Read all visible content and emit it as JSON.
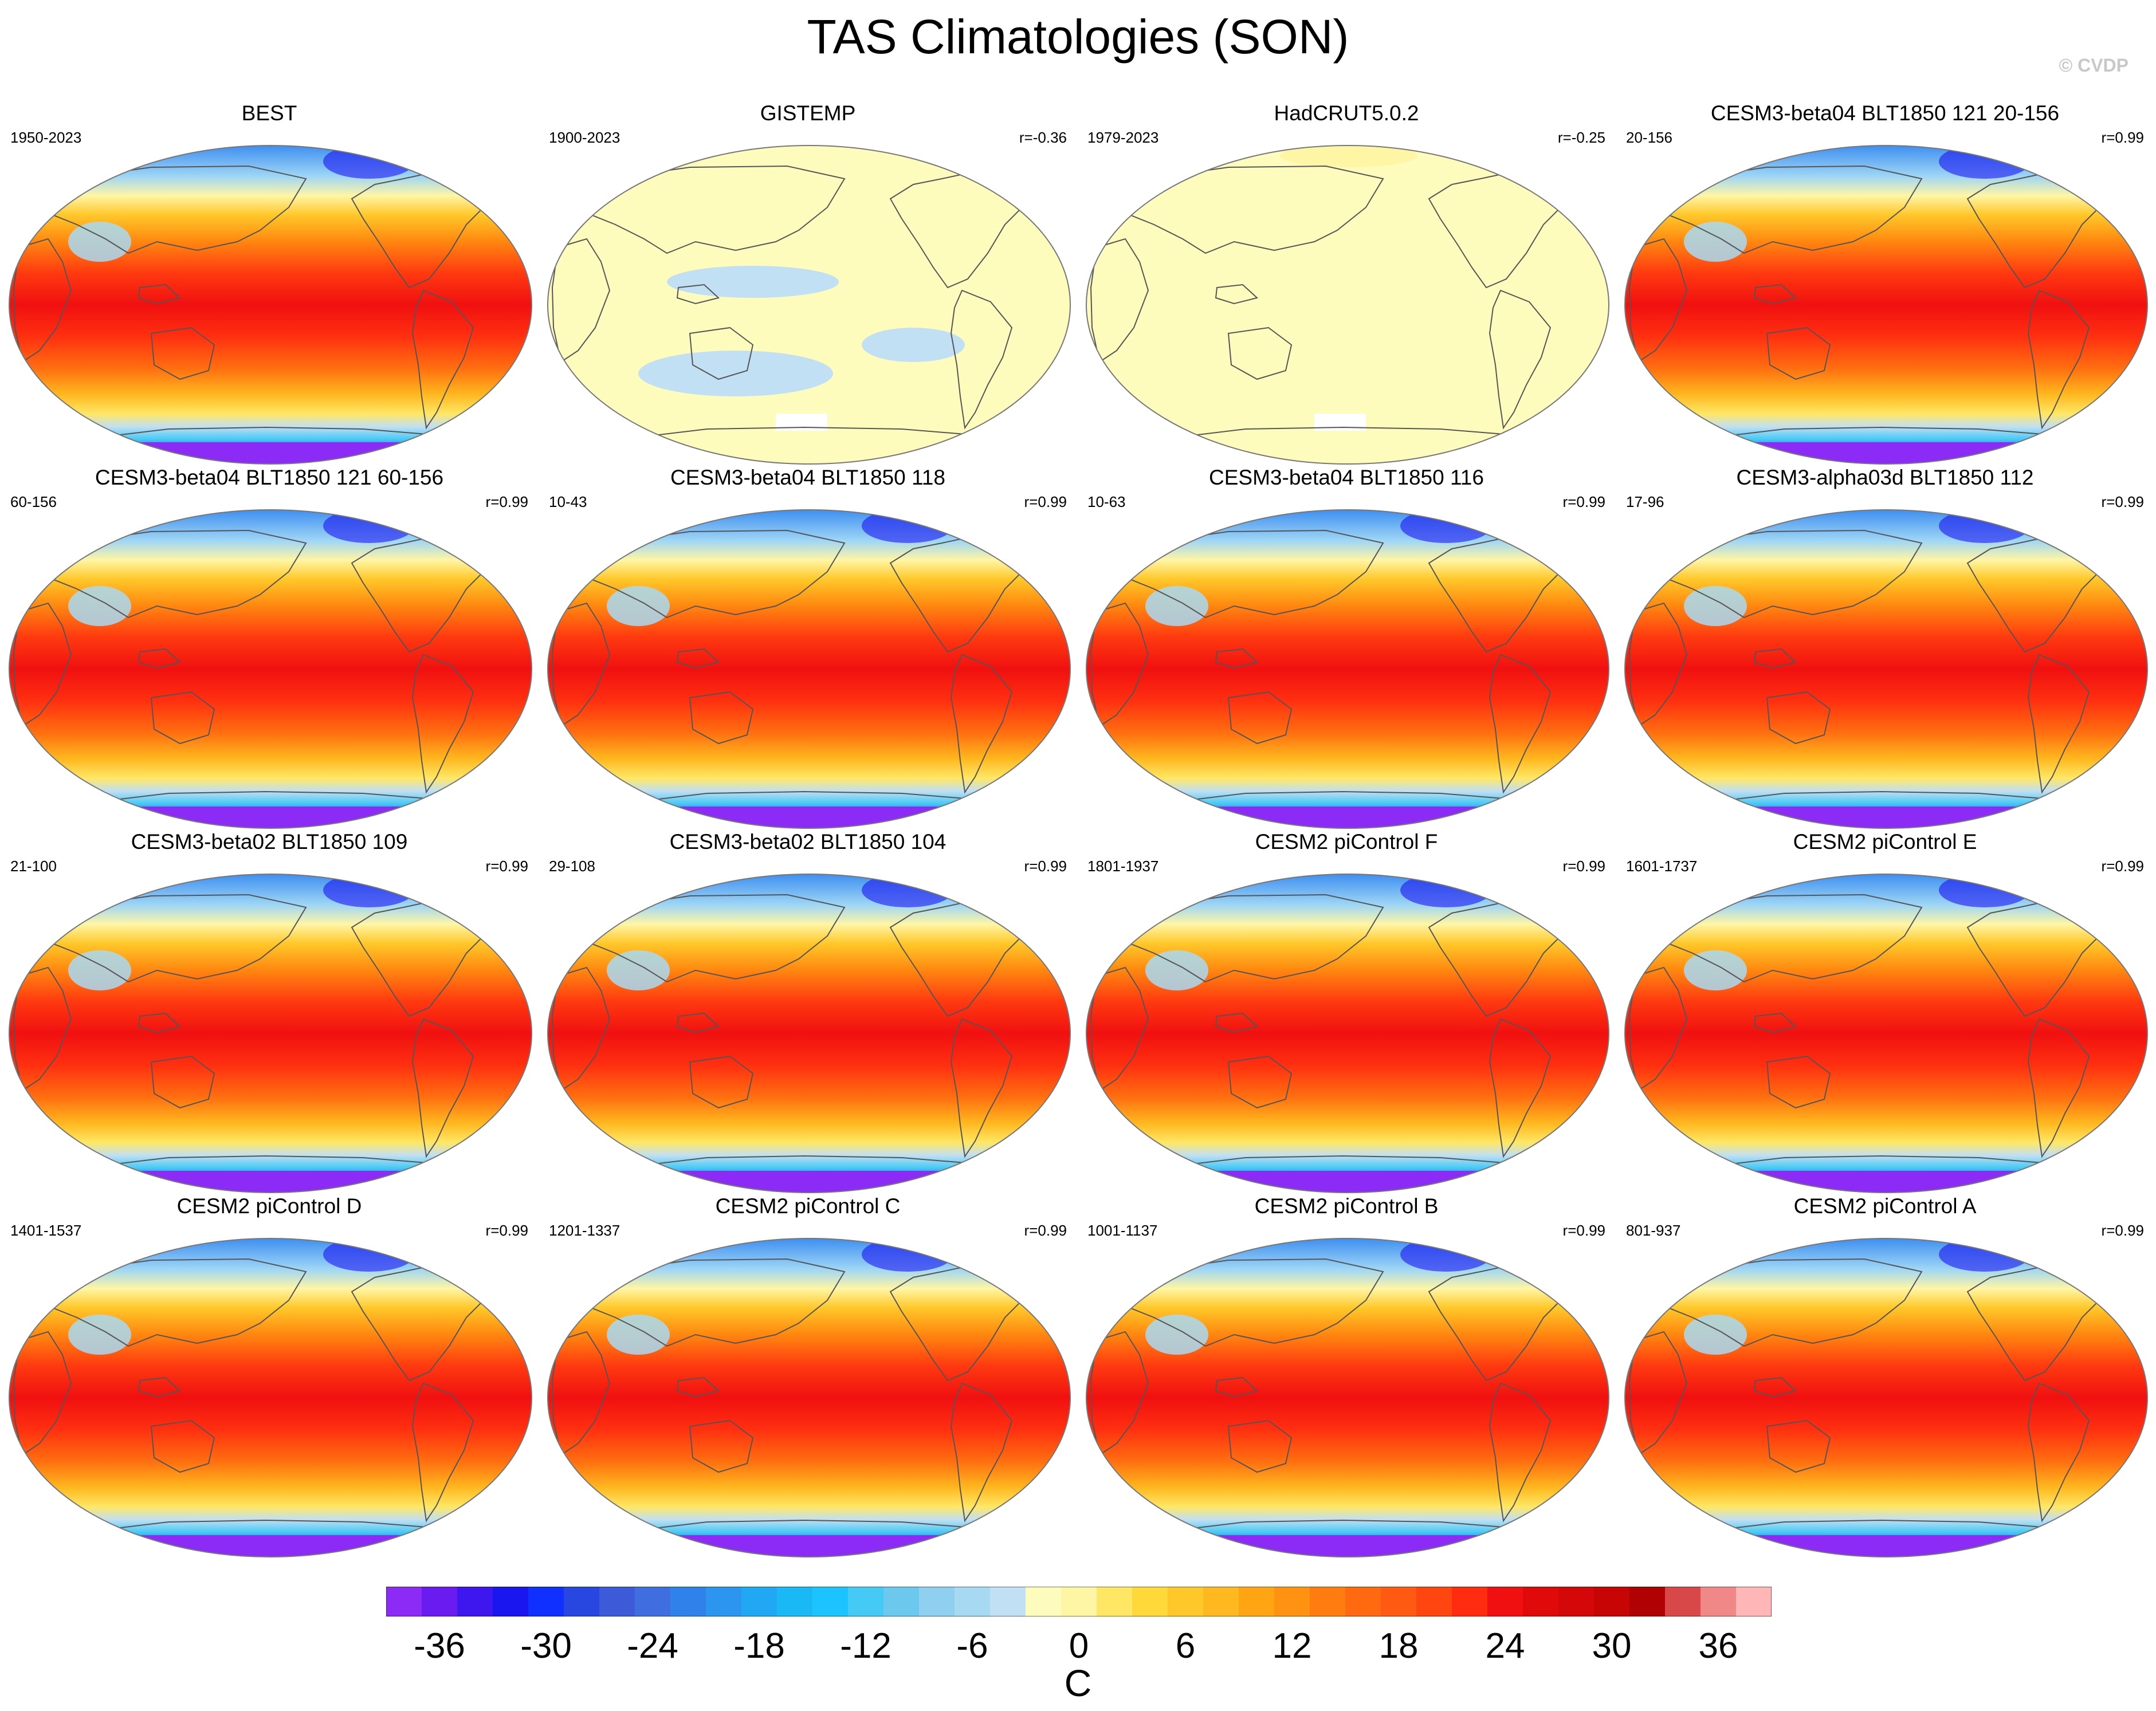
{
  "figure": {
    "title": "TAS Climatologies (SON)",
    "copyright": "© CVDP"
  },
  "colors": {
    "land_outline": "#555555",
    "map_border": "#777777",
    "colorbar_levels": [
      "#8c2bf5",
      "#6a1cf0",
      "#3d17ee",
      "#1a16f0",
      "#1030ff",
      "#2846e0",
      "#3d5ad8",
      "#3e6ee0",
      "#2f82ea",
      "#2c95f0",
      "#21a8f5",
      "#1ab8f5",
      "#1bc4ff",
      "#45c9f5",
      "#6dc8ee",
      "#8fd0f0",
      "#a8d9f3",
      "#c2e0f3",
      "#fefcbc",
      "#fff6a5",
      "#ffe765",
      "#ffd839",
      "#ffc82a",
      "#ffb81f",
      "#ffa514",
      "#ff9211",
      "#ff7d10",
      "#ff6a10",
      "#ff5a12",
      "#ff4510",
      "#ff2c10",
      "#f01010",
      "#e00a0a",
      "#d40808",
      "#c80505",
      "#b00202",
      "#d84848",
      "#f08888",
      "#ffb6b6"
    ]
  },
  "panels": [
    {
      "title": "BEST",
      "years": "1950-2023",
      "r": "",
      "kind": "full"
    },
    {
      "title": "GISTEMP",
      "years": "1900-2023",
      "r": "r=-0.36",
      "kind": "anom1"
    },
    {
      "title": "HadCRUT5.0.2",
      "years": "1979-2023",
      "r": "r=-0.25",
      "kind": "anom2"
    },
    {
      "title": "CESM3-beta04 BLT1850 121 20-156",
      "years": "20-156",
      "r": "r=0.99",
      "kind": "full"
    },
    {
      "title": "CESM3-beta04 BLT1850 121 60-156",
      "years": "60-156",
      "r": "r=0.99",
      "kind": "full"
    },
    {
      "title": "CESM3-beta04 BLT1850 118",
      "years": "10-43",
      "r": "r=0.99",
      "kind": "full"
    },
    {
      "title": "CESM3-beta04 BLT1850 116",
      "years": "10-63",
      "r": "r=0.99",
      "kind": "full"
    },
    {
      "title": "CESM3-alpha03d BLT1850 112",
      "years": "17-96",
      "r": "r=0.99",
      "kind": "full"
    },
    {
      "title": "CESM3-beta02 BLT1850 109",
      "years": "21-100",
      "r": "r=0.99",
      "kind": "full"
    },
    {
      "title": "CESM3-beta02 BLT1850 104",
      "years": "29-108",
      "r": "r=0.99",
      "kind": "full"
    },
    {
      "title": "CESM2 piControl F",
      "years": "1801-1937",
      "r": "r=0.99",
      "kind": "full"
    },
    {
      "title": "CESM2 piControl E",
      "years": "1601-1737",
      "r": "r=0.99",
      "kind": "full"
    },
    {
      "title": "CESM2 piControl D",
      "years": "1401-1537",
      "r": "r=0.99",
      "kind": "full"
    },
    {
      "title": "CESM2 piControl C",
      "years": "1201-1337",
      "r": "r=0.99",
      "kind": "full"
    },
    {
      "title": "CESM2 piControl B",
      "years": "1001-1137",
      "r": "r=0.99",
      "kind": "full"
    },
    {
      "title": "CESM2 piControl A",
      "years": "801-937",
      "r": "r=0.99",
      "kind": "full"
    }
  ],
  "colorbar": {
    "min": -39,
    "max": 39,
    "tick_labels": [
      "-36",
      "-30",
      "-24",
      "-18",
      "-12",
      "-6",
      "0",
      "6",
      "12",
      "18",
      "24",
      "30",
      "36"
    ],
    "tick_values": [
      -36,
      -30,
      -24,
      -18,
      -12,
      -6,
      0,
      6,
      12,
      18,
      24,
      30,
      36
    ],
    "units": "C"
  }
}
